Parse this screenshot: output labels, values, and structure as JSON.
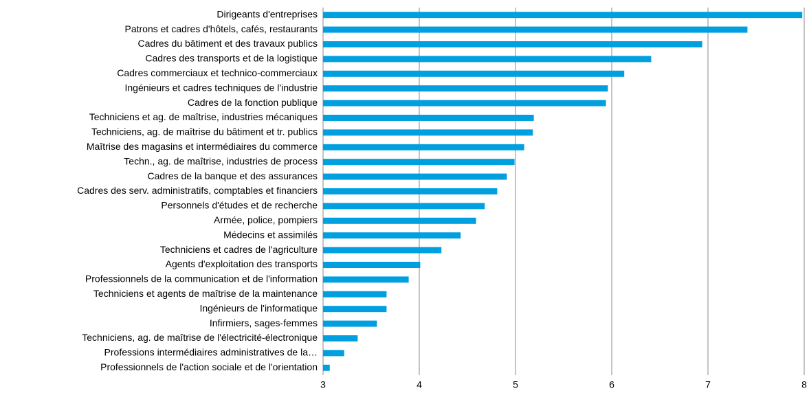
{
  "chart_data": {
    "type": "barh",
    "categories": [
      "Dirigeants d'entreprises",
      "Patrons et cadres d'hôtels, cafés, restaurants",
      "Cadres du bâtiment et des travaux publics",
      "Cadres des transports et de la logistique",
      "Cadres commerciaux et technico-commerciaux",
      "Ingénieurs et cadres techniques de l'industrie",
      "Cadres de la fonction publique",
      "Techniciens et ag. de maîtrise, industries mécaniques",
      "Techniciens, ag. de maîtrise du bâtiment et  tr. publics",
      "Maîtrise des magasins et intermédiaires du commerce",
      "Techn., ag. de maîtrise, industries de process",
      "Cadres de la banque et des assurances",
      "Cadres des serv. administratifs, comptables et financiers",
      "Personnels d'études et de recherche",
      "Armée, police, pompiers",
      "Médecins et assimilés",
      "Techniciens et cadres de l'agriculture",
      "Agents d'exploitation des transports",
      "Professionnels de la communication et de l'information",
      "Techniciens et agents de maîtrise de la maintenance",
      "Ingénieurs de l'informatique",
      "Infirmiers, sages-femmes",
      "Techniciens, ag. de maîtrise de l'électricité-électronique",
      "Professions intermédiaires administratives de la…",
      "Professionnels de l'action sociale et de l'orientation"
    ],
    "values": [
      7.98,
      7.41,
      6.94,
      6.41,
      6.13,
      5.96,
      5.94,
      5.19,
      5.18,
      5.09,
      4.99,
      4.91,
      4.81,
      4.68,
      4.59,
      4.43,
      4.23,
      4.01,
      3.89,
      3.66,
      3.66,
      3.56,
      3.36,
      3.22,
      3.07
    ],
    "color": "#00a0e0",
    "xlim": [
      3,
      8
    ],
    "xticks": [
      3,
      4,
      5,
      6,
      7,
      8
    ],
    "grid": true
  }
}
